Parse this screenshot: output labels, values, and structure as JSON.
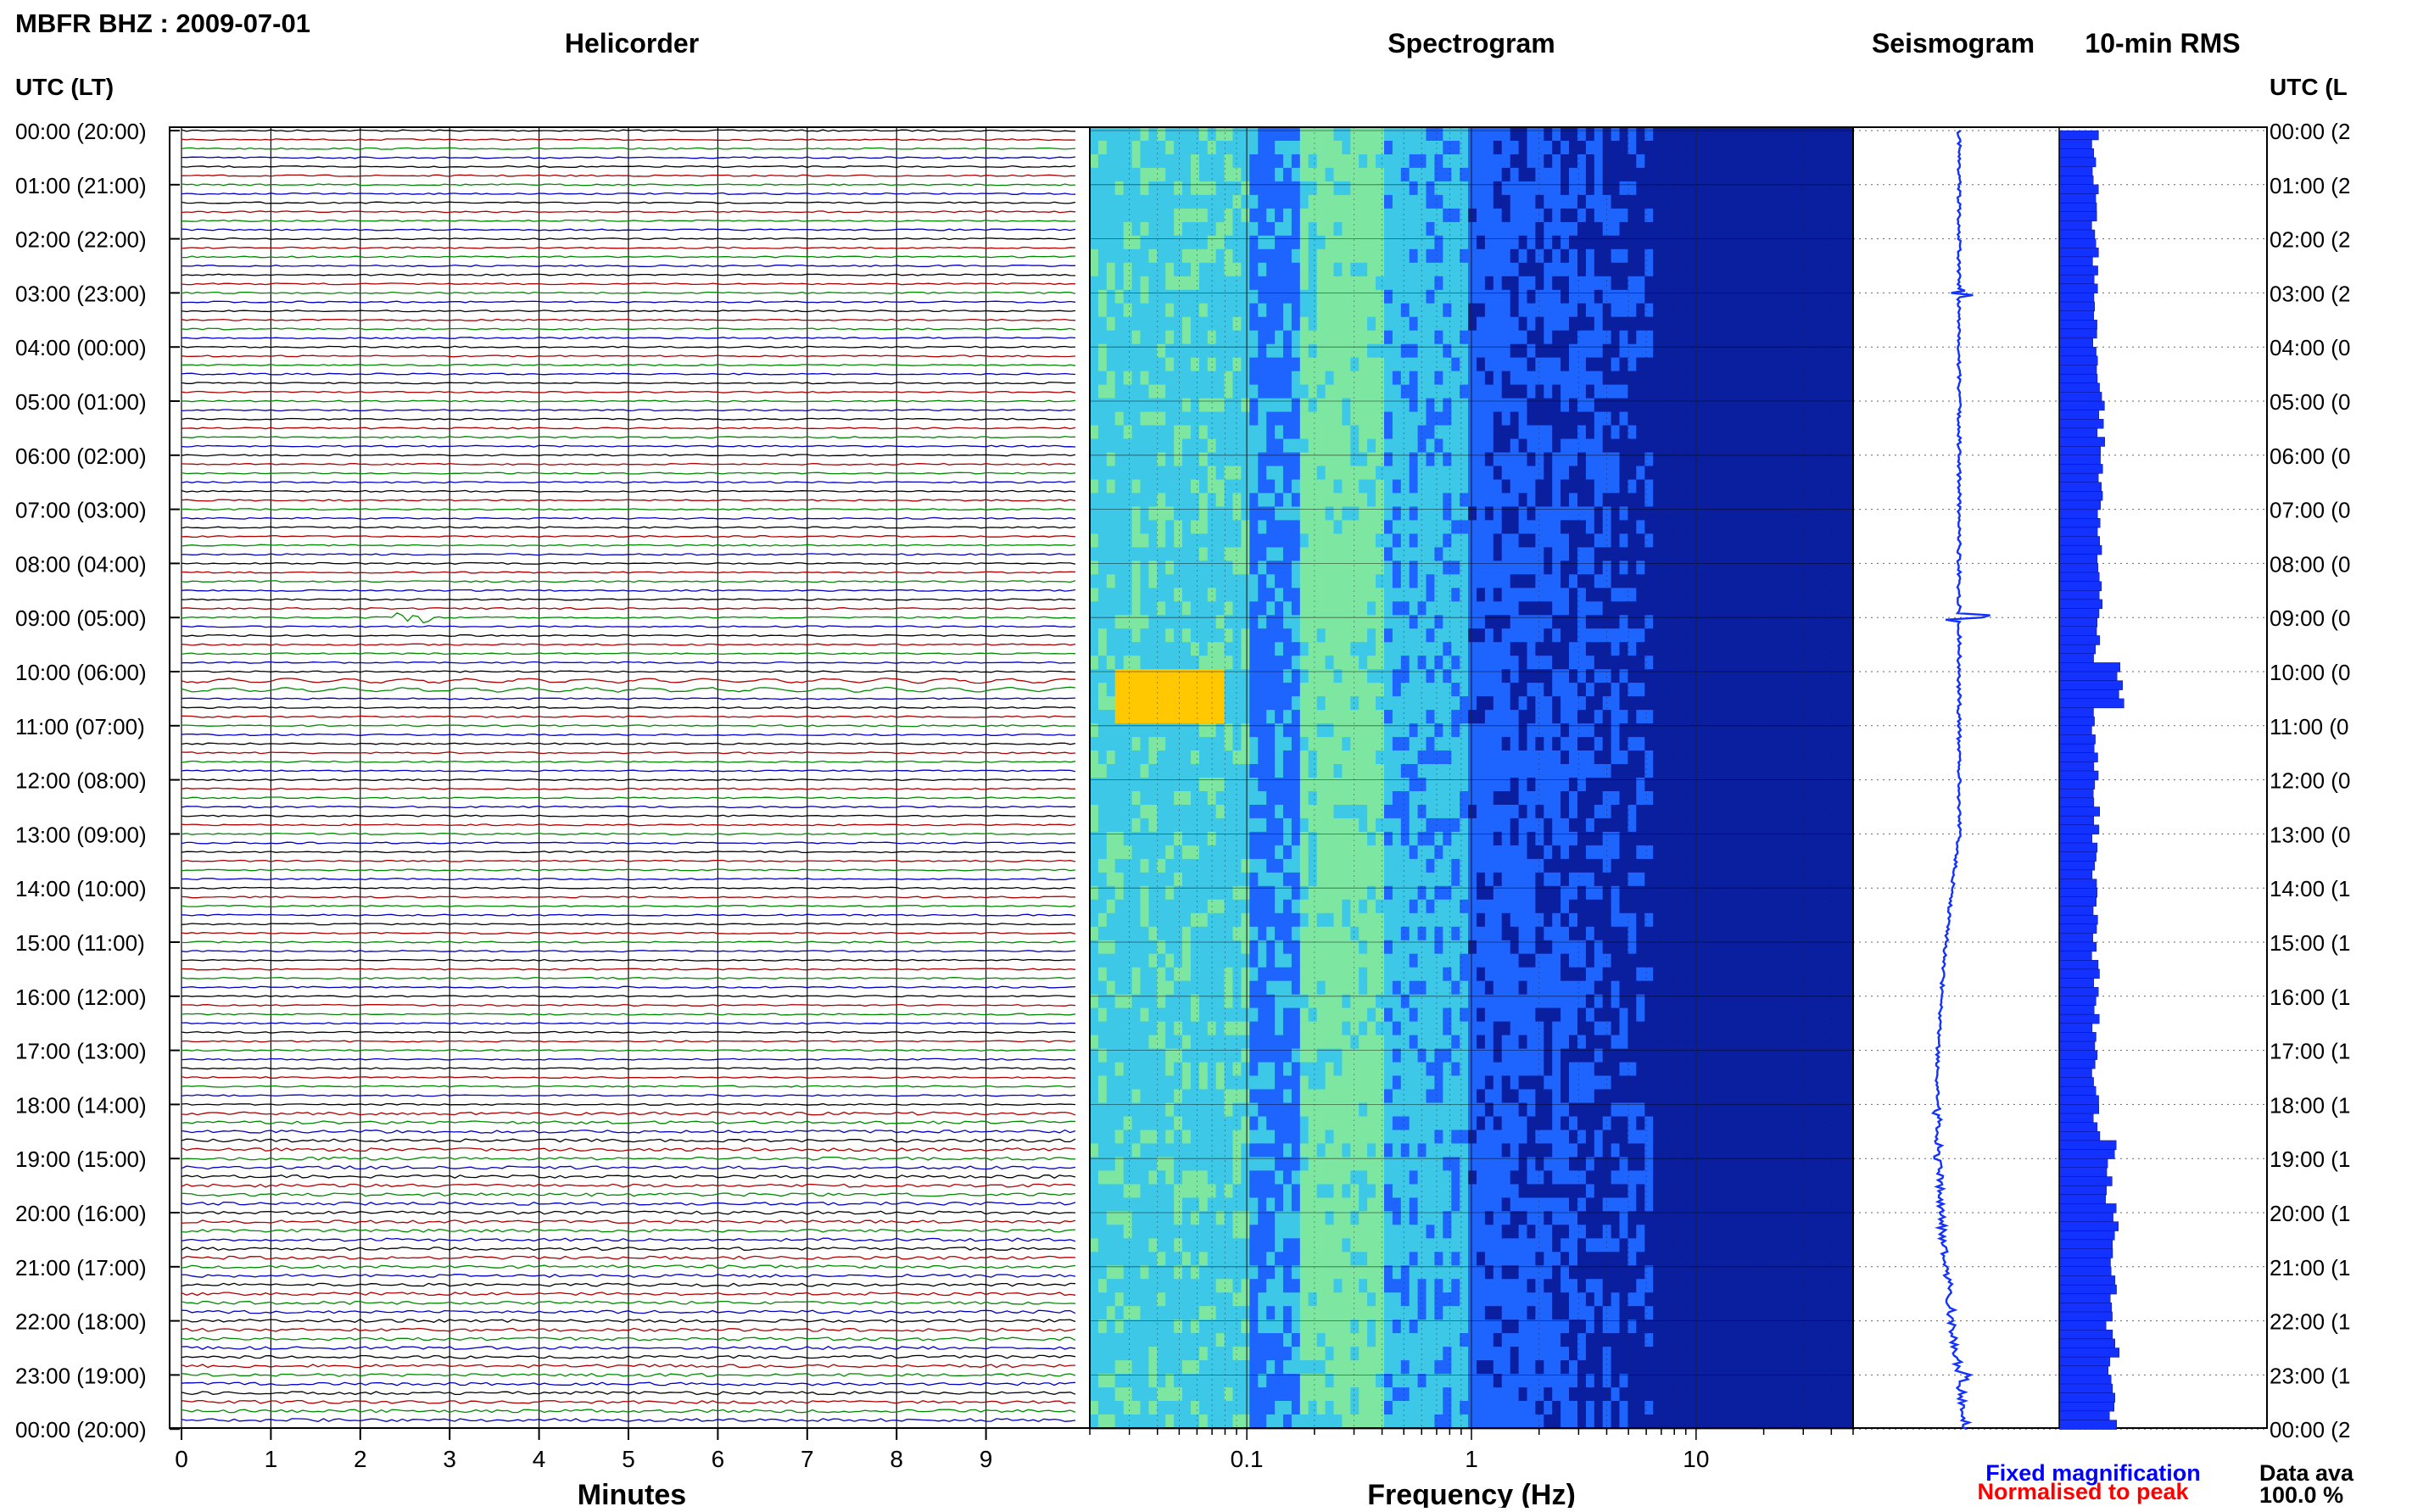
{
  "page": {
    "station_title": "MBFR BHZ : 2009-07-01",
    "utc_header_left": "UTC (LT)",
    "utc_header_right": "UTC (L",
    "footer": {
      "fixed_magnification": "Fixed magnification",
      "normalised_to_peak": "Normalised to peak",
      "data_availability_label": "Data ava",
      "data_availability_value": "100.0 %"
    }
  },
  "colors": {
    "trace_cycle": [
      "#000000",
      "#b00000",
      "#008a00",
      "#0000c8"
    ],
    "spectro_dark": "#0a1ea0",
    "spectro_mid": "#1e64ff",
    "spectro_cyan": "#3cc8e6",
    "spectro_hot": "#ffc800",
    "seis_blue": "#1432ff",
    "footer_blue": "#0000ff",
    "footer_red": "#ff0000"
  },
  "chart_data": [
    {
      "type": "line",
      "title": "Helicorder",
      "xlabel": "Minutes",
      "xlim": [
        0,
        10
      ],
      "x_ticks": [
        0,
        1,
        2,
        3,
        4,
        5,
        6,
        7,
        8,
        9
      ],
      "x_tick_labels": [
        "0",
        "1",
        "2",
        "3",
        "4",
        "5",
        "6",
        "7",
        "8",
        "9"
      ],
      "lines_per_hour": 6,
      "line_count": 144,
      "y_tick_labels": [
        "00:00 (20:00)",
        "01:00 (21:00)",
        "02:00 (22:00)",
        "03:00 (23:00)",
        "04:00 (00:00)",
        "05:00 (01:00)",
        "06:00 (02:00)",
        "07:00 (03:00)",
        "08:00 (04:00)",
        "09:00 (05:00)",
        "10:00 (06:00)",
        "11:00 (07:00)",
        "12:00 (08:00)",
        "13:00 (09:00)",
        "14:00 (10:00)",
        "15:00 (11:00)",
        "16:00 (12:00)",
        "17:00 (13:00)",
        "18:00 (14:00)",
        "19:00 (15:00)",
        "20:00 (16:00)",
        "21:00 (17:00)",
        "22:00 (18:00)",
        "23:00 (19:00)",
        "00:00 (20:00)"
      ]
    },
    {
      "type": "heatmap",
      "title": "Spectrogram",
      "xlabel": "Frequency (Hz)",
      "x_scale": "log",
      "xlim": [
        0.02,
        50
      ],
      "x_major_ticks": [
        0.1,
        1,
        10
      ],
      "x_tick_labels": [
        "0.1",
        "1",
        "10"
      ],
      "y_hours": [
        0,
        24
      ]
    },
    {
      "type": "line",
      "title": "Seismogram",
      "y_hours": [
        0,
        24
      ]
    },
    {
      "type": "bar",
      "title": "10-min RMS",
      "orientation": "horizontal",
      "y_hours": [
        0,
        24
      ],
      "y_tick_labels": [
        "00:00 (2",
        "01:00 (2",
        "02:00 (2",
        "03:00 (2",
        "04:00 (0",
        "05:00 (0",
        "06:00 (0",
        "07:00 (0",
        "08:00 (0",
        "09:00 (0",
        "10:00 (0",
        "11:00 (0",
        "12:00 (0",
        "13:00 (0",
        "14:00 (1",
        "15:00 (1",
        "16:00 (1",
        "17:00 (1",
        "18:00 (1",
        "19:00 (1",
        "20:00 (1",
        "21:00 (1",
        "22:00 (1",
        "23:00 (1",
        "00:00 (2"
      ]
    }
  ]
}
